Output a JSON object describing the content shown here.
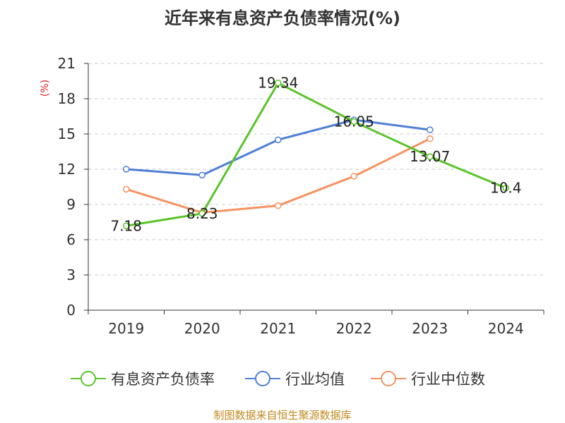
{
  "chart_data": {
    "type": "line",
    "title": "近年来有息资产负债率情况(%)",
    "ylabel": "(%)",
    "xlabel": "",
    "categories": [
      "2019",
      "2020",
      "2021",
      "2022",
      "2023",
      "2024"
    ],
    "ylim": [
      0,
      21
    ],
    "yticks": [
      0,
      3,
      6,
      9,
      12,
      15,
      18,
      21
    ],
    "grid": true,
    "legend_position": "bottom",
    "series": [
      {
        "name": "有息资产负债率",
        "color": "#5bc42b",
        "values": [
          7.18,
          8.23,
          19.34,
          16.05,
          13.07,
          10.4
        ],
        "labels": [
          "7.18",
          "8.23",
          "19.34",
          "16.05",
          "13.07",
          "10.4"
        ]
      },
      {
        "name": "行业均值",
        "color": "#4f7fd4",
        "values": [
          12.0,
          11.5,
          14.5,
          16.2,
          15.35,
          null
        ],
        "labels": []
      },
      {
        "name": "行业中位数",
        "color": "#f59260",
        "values": [
          10.3,
          8.3,
          8.9,
          11.4,
          14.6,
          null
        ],
        "labels": []
      }
    ]
  },
  "footer": {
    "source": "制图数据来自恒生聚源数据库"
  },
  "colors": {
    "axis": "#333333",
    "grid": "#cccccc",
    "ylabel": "#e02020",
    "source": "#c08a1e"
  }
}
